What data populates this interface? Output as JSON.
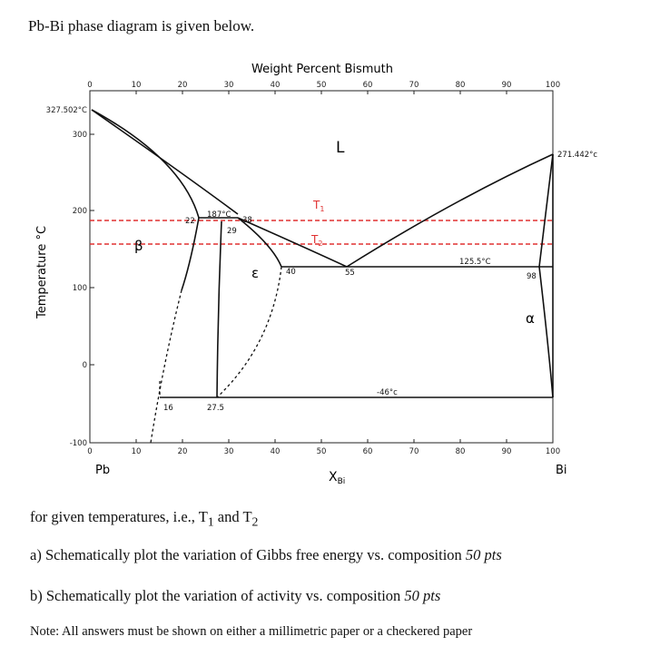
{
  "intro": "Pb-Bi phase diagram is given below.",
  "diagram": {
    "top_axis_title": "Weight Percent Bismuth",
    "top_ticks": [
      "0",
      "10",
      "20",
      "30",
      "40",
      "50",
      "60",
      "70",
      "80",
      "90",
      "100"
    ],
    "bottom_ticks": [
      "0",
      "10",
      "20",
      "30",
      "40",
      "50",
      "60",
      "70",
      "80",
      "90",
      "100"
    ],
    "y_axis_title": "Temperature °C",
    "y_ticks": [
      "327.502°C",
      "300",
      "200",
      "100",
      "0",
      "-100"
    ],
    "bottom_axis_title": "X",
    "bottom_axis_sub": "Bi",
    "element_left": "Pb",
    "element_right": "Bi",
    "phase_L": "L",
    "phase_beta": "β",
    "phase_epsilon": "ε",
    "phase_alpha": "α",
    "T1": "T",
    "T1_sub": "1",
    "T2": "T",
    "T2_sub": "2",
    "annotations": {
      "bi_melting": "271.442°c",
      "peritectic_temp": "187°C",
      "eutectic_temp": "125.5°C",
      "low_temp": "-46°c",
      "c22": "22",
      "c29": "29",
      "c38": "38",
      "c40": "40",
      "c55": "55",
      "c98": "98",
      "c16": "16",
      "c27_5": "27.5"
    },
    "colors": {
      "lines": "#111111",
      "temperature_marks": "#e03030"
    }
  },
  "questions": {
    "q1_prefix": "for given temperatures, i.e., T",
    "q1_sub1": "1",
    "q1_mid": " and T",
    "q1_sub2": "2",
    "qa_text": "a) Schematically plot the variation of Gibbs free energy vs. composition ",
    "qa_pts": "50 pts",
    "qb_text": "b) Schematically plot the variation of activity vs. composition ",
    "qb_pts": "50 pts",
    "note": "Note: All answers must be shown on either a millimetric paper or a checkered paper"
  }
}
